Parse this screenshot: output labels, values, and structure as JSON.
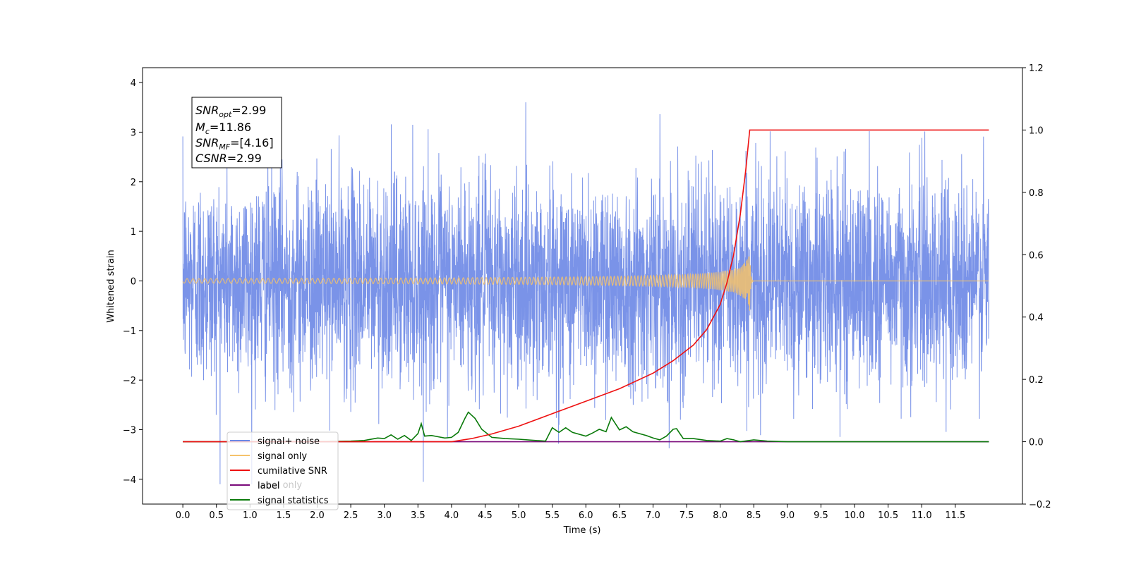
{
  "chart_data": {
    "type": "line",
    "xlabel": "Time (s)",
    "ylabel": "Whitened strain",
    "xlim": [
      -0.6,
      12.5
    ],
    "ylim": [
      -4.5,
      4.3
    ],
    "y2lim": [
      -0.2,
      1.2
    ],
    "x_ticks": [
      "0.0",
      "0.5",
      "1.0",
      "1.5",
      "2.0",
      "2.5",
      "3.0",
      "3.5",
      "4.0",
      "4.5",
      "5.0",
      "5.5",
      "6.0",
      "6.5",
      "7.0",
      "7.5",
      "8.0",
      "8.5",
      "9.0",
      "9.5",
      "10.0",
      "10.5",
      "11.0",
      "11.5"
    ],
    "y_ticks": [
      "4",
      "3",
      "2",
      "1",
      "0",
      "−1",
      "−2",
      "−3",
      "−4"
    ],
    "y2_ticks": [
      "1.2",
      "1.0",
      "0.8",
      "0.6",
      "0.4",
      "0.2",
      "0.0",
      "−0.2"
    ],
    "stats": {
      "snr_opt_label": "SNR",
      "snr_opt_sub": "opt",
      "snr_opt_value": "=2.99",
      "mc_label": "M",
      "mc_sub": "c",
      "mc_value": "=11.86",
      "snr_mf_label": "SNR",
      "snr_mf_sub": "MF",
      "snr_mf_value": "=[4.16]",
      "csnr_label": "CSNR",
      "csnr_value": "=2.99"
    },
    "legend_position": "lower-left",
    "hidden_legend_text": "label only",
    "series": [
      {
        "name": "signal+ noise",
        "axis": "left",
        "color": "#6b87e6",
        "description_values": {
          "x_range": [
            0.0,
            12.0
          ],
          "typical_amplitude": 2.0,
          "peak_max": 3.92,
          "peak_min": -4.12
        }
      },
      {
        "name": "signal only",
        "axis": "left",
        "color": "#f5c26b",
        "chirp": {
          "start": 0.0,
          "merger": 8.44,
          "end": 12.0,
          "peak_amplitude": 0.55,
          "min_amplitude": -0.6
        }
      },
      {
        "name": "cumilative SNR",
        "axis": "right",
        "color": "#ee1111",
        "x": [
          0.0,
          4.0,
          4.3,
          4.6,
          5.0,
          5.5,
          6.0,
          6.5,
          7.0,
          7.3,
          7.6,
          7.8,
          8.0,
          8.1,
          8.2,
          8.3,
          8.38,
          8.44,
          8.45,
          12.0
        ],
        "y": [
          0.0,
          0.0,
          0.01,
          0.025,
          0.05,
          0.09,
          0.13,
          0.17,
          0.22,
          0.26,
          0.31,
          0.36,
          0.44,
          0.51,
          0.6,
          0.73,
          0.87,
          1.0,
          1.0,
          1.0
        ]
      },
      {
        "name": "label",
        "axis": "right",
        "color": "#7a0a7a",
        "x": [
          0.0,
          12.0
        ],
        "y": [
          0.0,
          0.0
        ]
      },
      {
        "name": "signal statistics",
        "axis": "right",
        "color": "#0a7a0a",
        "x": [
          0.0,
          2.0,
          2.5,
          2.7,
          2.9,
          3.0,
          3.1,
          3.2,
          3.3,
          3.4,
          3.5,
          3.55,
          3.6,
          3.7,
          3.8,
          3.9,
          4.0,
          4.1,
          4.2,
          4.25,
          4.35,
          4.45,
          4.6,
          4.8,
          5.0,
          5.2,
          5.4,
          5.5,
          5.6,
          5.7,
          5.8,
          6.0,
          6.1,
          6.2,
          6.3,
          6.38,
          6.5,
          6.6,
          6.7,
          6.8,
          6.9,
          7.0,
          7.1,
          7.2,
          7.3,
          7.35,
          7.45,
          7.6,
          7.8,
          8.0,
          8.1,
          8.2,
          8.3,
          8.5,
          8.7,
          9.0,
          9.5,
          10.0,
          10.5,
          11.0,
          11.5,
          12.0
        ],
        "y": [
          0.0,
          0.0,
          0.002,
          0.004,
          0.012,
          0.01,
          0.022,
          0.008,
          0.02,
          0.004,
          0.026,
          0.058,
          0.018,
          0.02,
          0.016,
          0.012,
          0.014,
          0.03,
          0.075,
          0.095,
          0.075,
          0.04,
          0.014,
          0.01,
          0.008,
          0.005,
          0.002,
          0.045,
          0.03,
          0.045,
          0.03,
          0.018,
          0.028,
          0.04,
          0.032,
          0.078,
          0.038,
          0.048,
          0.032,
          0.026,
          0.02,
          0.012,
          0.006,
          0.018,
          0.04,
          0.042,
          0.01,
          0.01,
          0.004,
          0.002,
          0.01,
          0.006,
          0.0,
          0.006,
          0.002,
          0.0,
          0.0,
          0.0,
          0.0,
          0.0,
          0.0,
          0.0
        ]
      }
    ]
  }
}
